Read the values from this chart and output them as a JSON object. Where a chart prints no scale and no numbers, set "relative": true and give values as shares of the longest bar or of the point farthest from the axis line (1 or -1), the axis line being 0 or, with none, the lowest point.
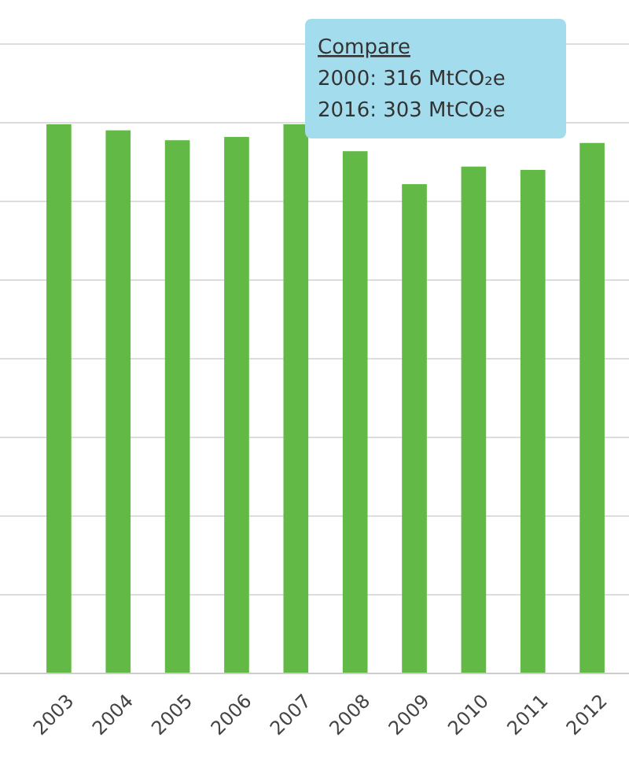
{
  "chart_data": {
    "type": "bar",
    "relative": true,
    "categories": [
      "2003",
      "2004",
      "2005",
      "2006",
      "2007",
      "2008",
      "2009",
      "2010",
      "2011",
      "2012"
    ],
    "values": [
      1,
      0.989,
      0.971,
      0.977,
      1,
      0.951,
      0.891,
      0.923,
      0.917,
      0.966
    ],
    "color": "#62b946",
    "grid": "y",
    "annotations": [
      "Compare",
      "2000: 316 MtCO₂e",
      "2016: 303 MtCO₂e"
    ]
  }
}
